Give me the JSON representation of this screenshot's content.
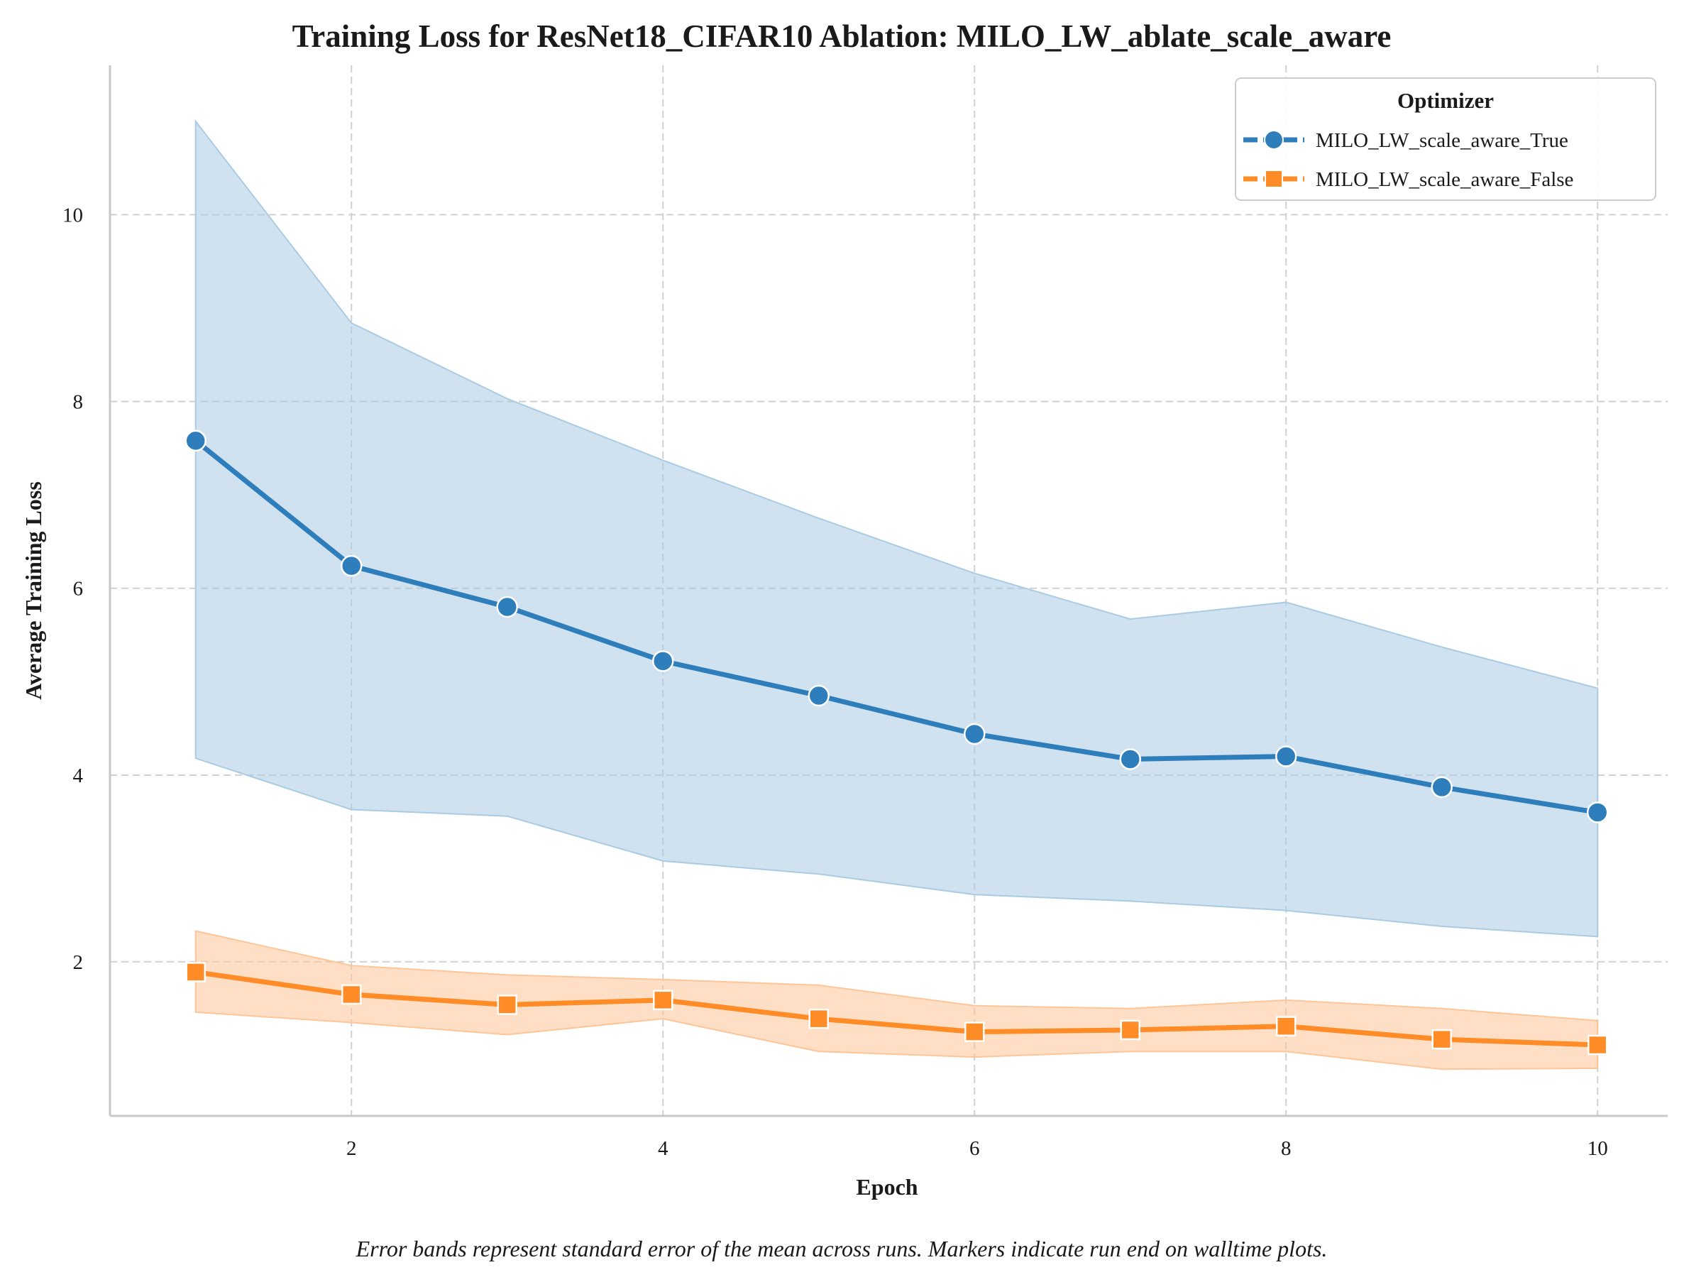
{
  "chart_data": {
    "type": "line",
    "title": "Training Loss for ResNet18_CIFAR10 Ablation: MILO_LW_ablate_scale_aware",
    "xlabel": "Epoch",
    "ylabel": "Average Training Loss",
    "caption": "Error bands represent standard error of the mean across runs. Markers indicate run end on walltime plots.",
    "x": [
      1,
      2,
      3,
      4,
      5,
      6,
      7,
      8,
      9,
      10
    ],
    "xlim": [
      0.45,
      10.45
    ],
    "ylim": [
      0.35,
      11.6
    ],
    "xticks": [
      2,
      4,
      6,
      8,
      10
    ],
    "xtick_labels": [
      "2",
      "4",
      "6",
      "8",
      "10"
    ],
    "yticks": [
      2,
      4,
      6,
      8,
      10
    ],
    "ytick_labels": [
      "2",
      "4",
      "6",
      "8",
      "10"
    ],
    "grid": true,
    "legend": {
      "title": "Optimizer",
      "placement": "top-right"
    },
    "series": [
      {
        "name": "MILO_LW_scale_aware_True",
        "color": "#2f7ebc",
        "band_color": "#a9cbe3",
        "marker": "circle",
        "values": [
          7.58,
          6.24,
          5.8,
          5.22,
          4.85,
          4.44,
          4.17,
          4.2,
          3.87,
          3.6
        ],
        "lower": [
          4.18,
          3.63,
          3.56,
          3.08,
          2.94,
          2.72,
          2.65,
          2.55,
          2.38,
          2.27
        ],
        "upper": [
          11.0,
          8.84,
          8.03,
          7.37,
          6.75,
          6.16,
          5.67,
          5.85,
          5.37,
          4.93
        ]
      },
      {
        "name": "MILO_LW_scale_aware_False",
        "color": "#ff8c26",
        "band_color": "#fdc598",
        "marker": "square",
        "values": [
          1.89,
          1.65,
          1.54,
          1.59,
          1.39,
          1.25,
          1.27,
          1.31,
          1.17,
          1.11
        ],
        "lower": [
          1.46,
          1.35,
          1.22,
          1.39,
          1.04,
          0.98,
          1.04,
          1.04,
          0.85,
          0.86
        ],
        "upper": [
          2.33,
          1.96,
          1.86,
          1.81,
          1.75,
          1.53,
          1.5,
          1.59,
          1.5,
          1.37
        ]
      }
    ]
  }
}
